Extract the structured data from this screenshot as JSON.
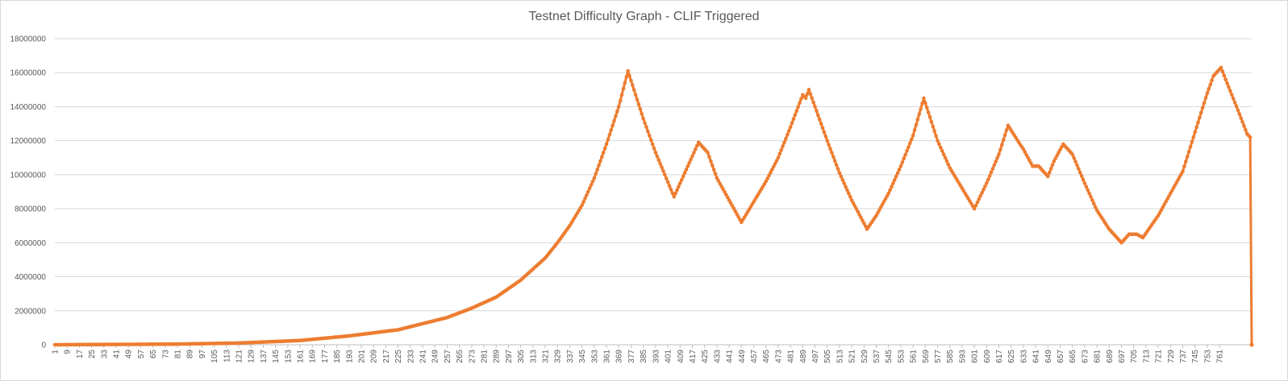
{
  "chart_data": {
    "type": "line",
    "title": "Testnet Difficulty Graph - CLIF Triggered",
    "xlabel": "",
    "ylabel": "",
    "ylim": [
      0,
      18000000
    ],
    "yticks": [
      "0",
      "2000000",
      "4000000",
      "6000000",
      "8000000",
      "10000000",
      "12000000",
      "14000000",
      "16000000",
      "18000000"
    ],
    "x_range": [
      1,
      765
    ],
    "x_tick_step": 8,
    "grid": "horizontal",
    "legend": "none",
    "color": "#ed7d31",
    "series": [
      {
        "name": "",
        "points": [
          [
            1,
            0
          ],
          [
            81,
            40000
          ],
          [
            121,
            100000
          ],
          [
            161,
            250000
          ],
          [
            193,
            520000
          ],
          [
            225,
            880000
          ],
          [
            257,
            1600000
          ],
          [
            273,
            2150000
          ],
          [
            289,
            2800000
          ],
          [
            305,
            3800000
          ],
          [
            321,
            5100000
          ],
          [
            329,
            6000000
          ],
          [
            337,
            7000000
          ],
          [
            345,
            8200000
          ],
          [
            353,
            9800000
          ],
          [
            361,
            11800000
          ],
          [
            369,
            14000000
          ],
          [
            375,
            16100000
          ],
          [
            385,
            13300000
          ],
          [
            393,
            11300000
          ],
          [
            405,
            8700000
          ],
          [
            421,
            11900000
          ],
          [
            427,
            11300000
          ],
          [
            433,
            9800000
          ],
          [
            449,
            7200000
          ],
          [
            457,
            8400000
          ],
          [
            465,
            9600000
          ],
          [
            473,
            11000000
          ],
          [
            481,
            12800000
          ],
          [
            489,
            14700000
          ],
          [
            491,
            14500000
          ],
          [
            493,
            15000000
          ],
          [
            505,
            12000000
          ],
          [
            513,
            10100000
          ],
          [
            521,
            8500000
          ],
          [
            531,
            6800000
          ],
          [
            537,
            7600000
          ],
          [
            545,
            8900000
          ],
          [
            553,
            10500000
          ],
          [
            561,
            12300000
          ],
          [
            568,
            14500000
          ],
          [
            577,
            12000000
          ],
          [
            585,
            10400000
          ],
          [
            601,
            8000000
          ],
          [
            609,
            9500000
          ],
          [
            617,
            11200000
          ],
          [
            623,
            12900000
          ],
          [
            630,
            11900000
          ],
          [
            633,
            11500000
          ],
          [
            639,
            10500000
          ],
          [
            643,
            10500000
          ],
          [
            649,
            9900000
          ],
          [
            653,
            10800000
          ],
          [
            659,
            11800000
          ],
          [
            665,
            11200000
          ],
          [
            673,
            9500000
          ],
          [
            681,
            7900000
          ],
          [
            689,
            6800000
          ],
          [
            697,
            6000000
          ],
          [
            702,
            6500000
          ],
          [
            707,
            6500000
          ],
          [
            711,
            6300000
          ],
          [
            721,
            7600000
          ],
          [
            737,
            10200000
          ],
          [
            745,
            12500000
          ],
          [
            753,
            14800000
          ],
          [
            757,
            15800000
          ],
          [
            762,
            16300000
          ],
          [
            765,
            15600000
          ],
          [
            773,
            13800000
          ],
          [
            779,
            12400000
          ],
          [
            781,
            12200000
          ],
          [
            782,
            0
          ]
        ]
      }
    ]
  }
}
